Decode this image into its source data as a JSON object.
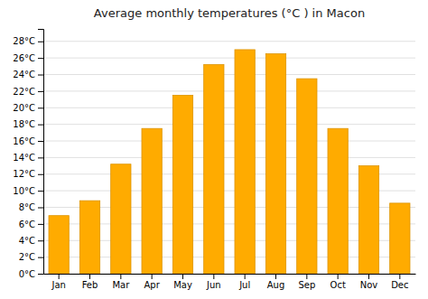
{
  "chart_data": {
    "type": "bar",
    "title": "Average monthly temperatures (°C ) in Macon",
    "categories": [
      "Jan",
      "Feb",
      "Mar",
      "Apr",
      "May",
      "Jun",
      "Jul",
      "Aug",
      "Sep",
      "Oct",
      "Nov",
      "Dec"
    ],
    "values": [
      7.0,
      8.8,
      13.2,
      17.5,
      21.5,
      25.2,
      27.0,
      26.5,
      23.5,
      17.5,
      13.0,
      8.5
    ],
    "color": "#FFAB00",
    "ylim": [
      0,
      29.5
    ],
    "yticks": [
      {
        "value": 0,
        "label": "0°C"
      },
      {
        "value": 2,
        "label": "2°C"
      },
      {
        "value": 4,
        "label": "4°C"
      },
      {
        "value": 6,
        "label": "6°C"
      },
      {
        "value": 8,
        "label": "8°C"
      },
      {
        "value": 10,
        "label": "10°C"
      },
      {
        "value": 12,
        "label": "12°C"
      },
      {
        "value": 14,
        "label": "14°C"
      },
      {
        "value": 16,
        "label": "16°C"
      },
      {
        "value": 18,
        "label": "18°C"
      },
      {
        "value": 20,
        "label": "20°C"
      },
      {
        "value": 22,
        "label": "22°C"
      },
      {
        "value": 24,
        "label": "24°C"
      },
      {
        "value": 26,
        "label": "26°C"
      },
      {
        "value": 28,
        "label": "28°C"
      }
    ],
    "grid": true
  }
}
